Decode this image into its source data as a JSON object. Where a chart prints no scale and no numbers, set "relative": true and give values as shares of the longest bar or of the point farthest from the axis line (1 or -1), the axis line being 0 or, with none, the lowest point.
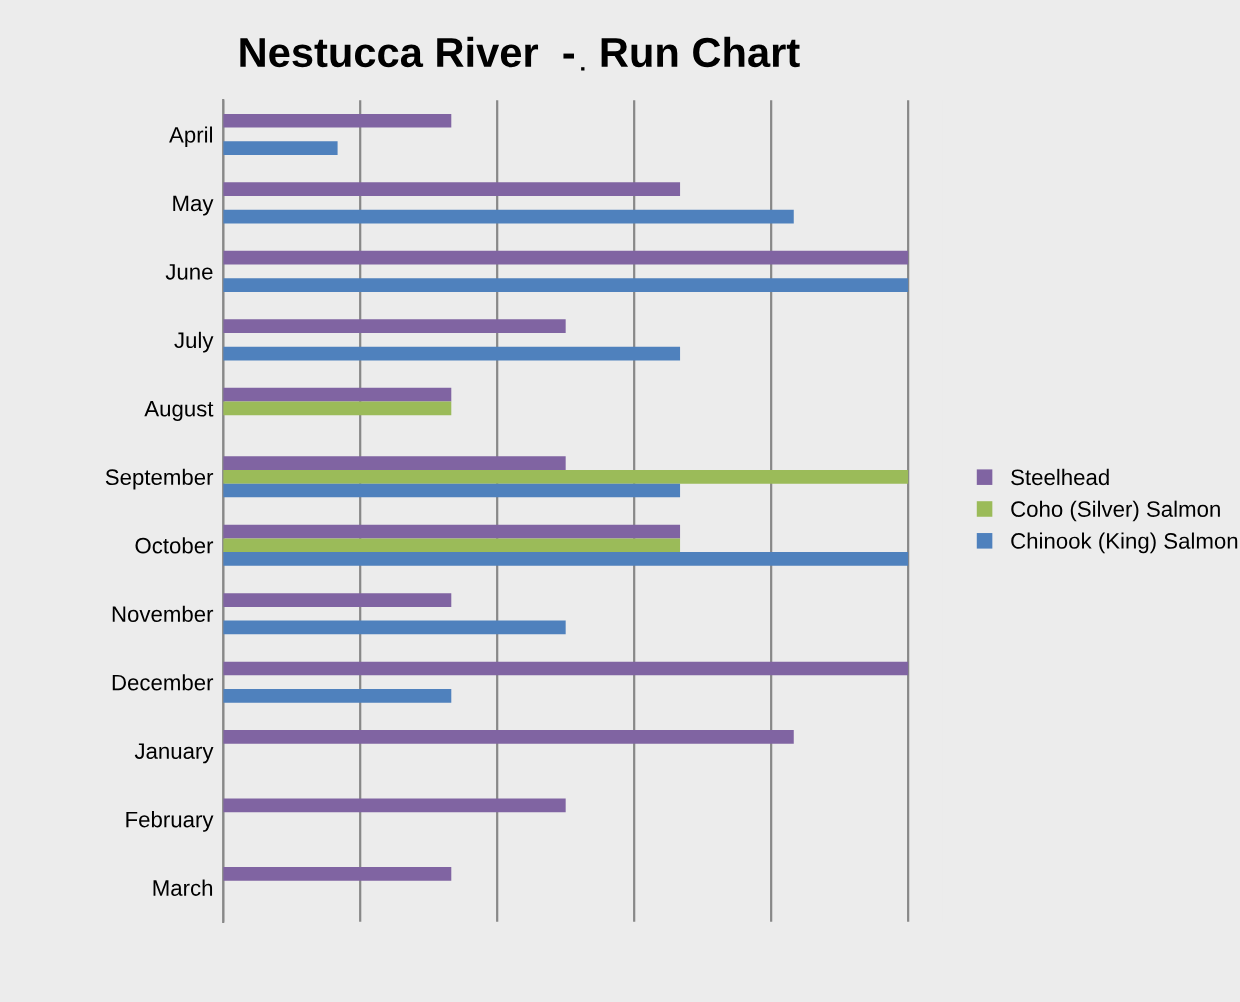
{
  "chart_data": {
    "type": "bar",
    "orientation": "horizontal",
    "relative": true,
    "title": "Nestucca River  -  Run Chart",
    "categories": [
      "April",
      "May",
      "June",
      "July",
      "August",
      "September",
      "October",
      "November",
      "December",
      "January",
      "February",
      "March"
    ],
    "series": [
      {
        "name": "Steelhead",
        "color": "#8064a2",
        "values": [
          0.333,
          0.667,
          1,
          0.5,
          0.333,
          0.5,
          0.667,
          0.333,
          1,
          0.833,
          0.5,
          0.333
        ]
      },
      {
        "name": "Coho (Silver) Salmon",
        "color": "#9bbb59",
        "values": [
          null,
          null,
          null,
          null,
          0.333,
          1,
          0.667,
          null,
          null,
          null,
          null,
          null
        ]
      },
      {
        "name": "Chinook (King) Salmon",
        "color": "#4f81bd",
        "values": [
          0.167,
          0.833,
          1,
          0.667,
          null,
          0.667,
          1,
          0.5,
          0.333,
          null,
          null,
          null
        ]
      }
    ],
    "grid": "x",
    "legend": "right"
  }
}
